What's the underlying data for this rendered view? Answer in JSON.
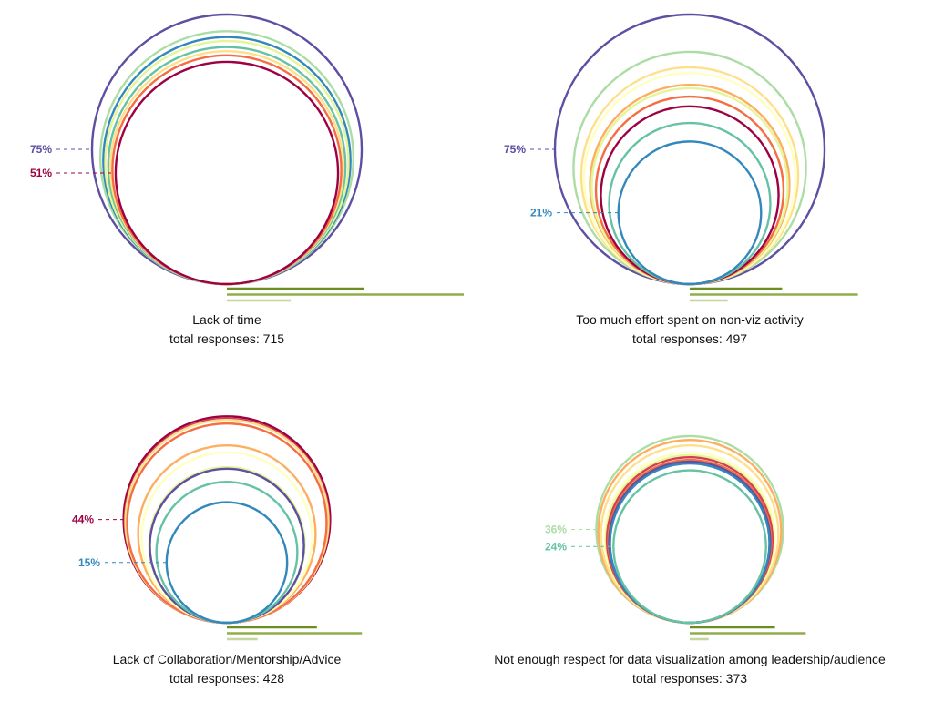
{
  "chart_data": {
    "type": "nested-circles",
    "note": "circle area proportional to percentage; circles tangent at bottom",
    "colors": {
      "purple": "#5e4fa2",
      "blue": "#3288bd",
      "teal": "#66c2a5",
      "lightgreen": "#abdda4",
      "yellowgreen": "#e6f598",
      "paleyellow": "#ffffbf",
      "yellow": "#fee08b",
      "orange": "#fdae61",
      "redorange": "#f46d43",
      "red": "#d53e4f",
      "crimson": "#9e0142",
      "bar_dark": "#6b8e23",
      "bar_mid": "#8fae4a",
      "bar_light": "#c5d6a0"
    },
    "charts": [
      {
        "title": "Lack of time",
        "subtitle": "total responses: 715",
        "circles": [
          {
            "color": "purple",
            "value": 75
          },
          {
            "color": "lightgreen",
            "value": 66
          },
          {
            "color": "blue",
            "value": 63
          },
          {
            "color": "yellowgreen",
            "value": 61
          },
          {
            "color": "teal",
            "value": 58
          },
          {
            "color": "yellow",
            "value": 56
          },
          {
            "color": "redorange",
            "value": 54
          },
          {
            "color": "crimson",
            "value": 51
          }
        ],
        "labels": [
          {
            "text": "75%",
            "value": 75,
            "color": "purple"
          },
          {
            "text": "51%",
            "value": 51,
            "color": "crimson"
          }
        ],
        "bars": [
          58,
          100,
          27
        ]
      },
      {
        "title": "Too much effort spent on non-viz activity",
        "subtitle": "total responses: 497",
        "circles": [
          {
            "color": "purple",
            "value": 75
          },
          {
            "color": "lightgreen",
            "value": 55.7
          },
          {
            "color": "yellow",
            "value": 48.5
          },
          {
            "color": "paleyellow",
            "value": 46
          },
          {
            "color": "orange",
            "value": 41
          },
          {
            "color": "yellowgreen",
            "value": 39.6
          },
          {
            "color": "redorange",
            "value": 36.3
          },
          {
            "color": "crimson",
            "value": 32.6
          },
          {
            "color": "teal",
            "value": 26.8
          },
          {
            "color": "blue",
            "value": 21
          }
        ],
        "labels": [
          {
            "text": "75%",
            "value": 75,
            "color": "purple"
          },
          {
            "text": "21%",
            "value": 21,
            "color": "blue"
          }
        ],
        "bars": [
          39,
          71,
          16
        ]
      },
      {
        "title": "Lack of Collaboration/Mentorship/Advice",
        "subtitle": "total responses: 428",
        "circles": [
          {
            "color": "crimson",
            "value": 44
          },
          {
            "color": "red",
            "value": 43
          },
          {
            "color": "yellow",
            "value": 42.5
          },
          {
            "color": "redorange",
            "value": 41
          },
          {
            "color": "orange",
            "value": 32.5
          },
          {
            "color": "paleyellow",
            "value": 30
          },
          {
            "color": "yellowgreen",
            "value": 25
          },
          {
            "color": "purple",
            "value": 24.5
          },
          {
            "color": "teal",
            "value": 20.5
          },
          {
            "color": "blue",
            "value": 15
          }
        ],
        "labels": [
          {
            "text": "44%",
            "value": 44,
            "color": "crimson"
          },
          {
            "text": "15%",
            "value": 15,
            "color": "blue"
          }
        ],
        "bars": [
          38,
          57,
          13
        ]
      },
      {
        "title": "Not enough respect for data visualization among leadership/audience",
        "subtitle": "total responses: 373",
        "circles": [
          {
            "color": "lightgreen",
            "value": 36
          },
          {
            "color": "orange",
            "value": 34.5
          },
          {
            "color": "yellow",
            "value": 32.5
          },
          {
            "color": "paleyellow",
            "value": 30
          },
          {
            "color": "yellowgreen",
            "value": 29
          },
          {
            "color": "red",
            "value": 28.3
          },
          {
            "color": "redorange",
            "value": 27.4
          },
          {
            "color": "purple",
            "value": 26.8
          },
          {
            "color": "blue",
            "value": 26.2
          },
          {
            "color": "teal",
            "value": 24
          }
        ],
        "labels": [
          {
            "text": "36%",
            "value": 36,
            "color": "lightgreen"
          },
          {
            "text": "24%",
            "value": 24,
            "color": "teal"
          }
        ],
        "bars": [
          36,
          49,
          8
        ]
      }
    ]
  }
}
